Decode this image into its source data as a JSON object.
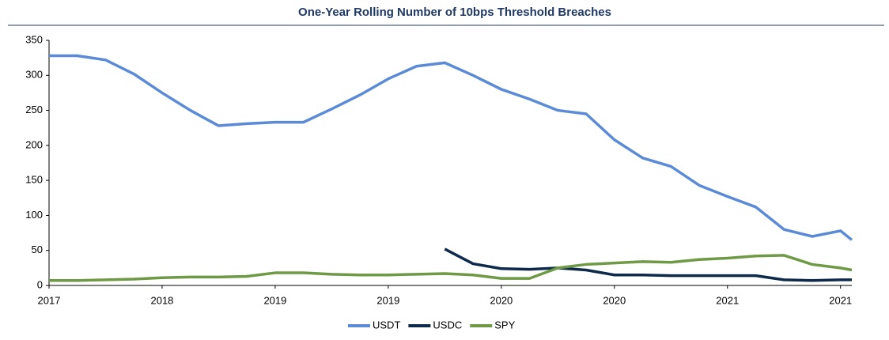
{
  "chart_data": {
    "type": "line",
    "title": "One-Year Rolling Number of 10bps Threshold Breaches",
    "x": [
      0,
      0.25,
      0.5,
      0.75,
      1,
      1.25,
      1.5,
      1.75,
      2,
      2.25,
      2.5,
      2.75,
      3,
      3.25,
      3.5,
      3.75,
      4,
      4.25,
      4.5,
      4.75,
      5,
      5.25,
      5.5,
      5.75,
      6,
      6.25,
      6.5,
      6.75,
      7,
      7.1
    ],
    "series": [
      {
        "name": "USDT",
        "color": "#5b8bd6",
        "values": [
          328,
          328,
          322,
          302,
          275,
          250,
          228,
          231,
          233,
          233,
          252,
          272,
          295,
          313,
          318,
          300,
          280,
          266,
          250,
          245,
          208,
          182,
          170,
          143,
          127,
          112,
          80,
          70,
          78,
          65
        ]
      },
      {
        "name": "USDC",
        "color": "#0d2a4a",
        "values": [
          null,
          null,
          null,
          null,
          null,
          null,
          null,
          null,
          null,
          null,
          null,
          null,
          null,
          null,
          52,
          31,
          24,
          23,
          25,
          22,
          15,
          15,
          14,
          14,
          14,
          14,
          8,
          7,
          8,
          8
        ]
      },
      {
        "name": "SPY",
        "color": "#6e9a46",
        "values": [
          7,
          7,
          8,
          9,
          11,
          12,
          12,
          13,
          18,
          18,
          16,
          15,
          15,
          16,
          17,
          15,
          10,
          10,
          25,
          30,
          32,
          34,
          33,
          37,
          39,
          42,
          43,
          30,
          25,
          22
        ]
      }
    ],
    "xlim": [
      0,
      7.1
    ],
    "xticks": [
      {
        "value": 0,
        "label": "2017"
      },
      {
        "value": 1,
        "label": "2018"
      },
      {
        "value": 2,
        "label": "2019"
      },
      {
        "value": 3,
        "label": "2019"
      },
      {
        "value": 4,
        "label": "2020"
      },
      {
        "value": 5,
        "label": "2020"
      },
      {
        "value": 6,
        "label": "2021"
      },
      {
        "value": 7,
        "label": "2021"
      }
    ],
    "ylim": [
      0,
      350
    ],
    "yticks": [
      0,
      50,
      100,
      150,
      200,
      250,
      300,
      350
    ],
    "legend": "bottom"
  }
}
